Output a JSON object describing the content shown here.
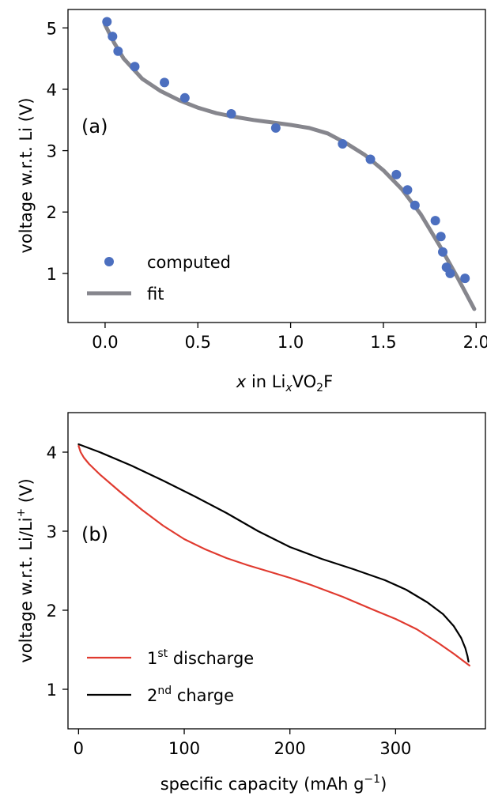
{
  "chart_data": [
    {
      "type": "scatter",
      "panel_label": "(a)",
      "xlabel": {
        "italic": "x",
        "pre": " in Li",
        "sub1": "x",
        "mid": "VO",
        "sub2": "2",
        "post": "F"
      },
      "ylabel": "voltage w.r.t. Li (V)",
      "xlim": [
        -0.2,
        2.05
      ],
      "ylim": [
        0.2,
        5.3
      ],
      "xticks": [
        0.0,
        0.5,
        1.0,
        1.5,
        2.0
      ],
      "xtick_labels": [
        "0.0",
        "0.5",
        "1.0",
        "1.5",
        "2.0"
      ],
      "yticks": [
        1,
        2,
        3,
        4,
        5
      ],
      "ytick_labels": [
        "1",
        "2",
        "3",
        "4",
        "5"
      ],
      "legend_position": "lower-left",
      "series": [
        {
          "name": "computed",
          "kind": "scatter",
          "color": "#4c6fbf",
          "x": [
            0.01,
            0.04,
            0.07,
            0.16,
            0.32,
            0.43,
            0.68,
            0.92,
            1.28,
            1.43,
            1.57,
            1.63,
            1.67,
            1.78,
            1.81,
            1.82,
            1.84,
            1.86,
            1.94
          ],
          "y": [
            5.1,
            4.86,
            4.62,
            4.37,
            4.11,
            3.86,
            3.6,
            3.37,
            3.11,
            2.86,
            2.61,
            2.36,
            2.11,
            1.86,
            1.6,
            1.35,
            1.1,
            1.0,
            0.92
          ]
        },
        {
          "name": "fit",
          "kind": "line",
          "color": "#86868d",
          "x": [
            0.0,
            0.05,
            0.1,
            0.2,
            0.3,
            0.4,
            0.5,
            0.6,
            0.7,
            0.8,
            0.9,
            1.0,
            1.1,
            1.2,
            1.3,
            1.4,
            1.5,
            1.6,
            1.7,
            1.8,
            1.9,
            1.99
          ],
          "y": [
            5.05,
            4.75,
            4.5,
            4.17,
            3.97,
            3.82,
            3.7,
            3.61,
            3.55,
            3.5,
            3.46,
            3.42,
            3.37,
            3.28,
            3.12,
            2.93,
            2.68,
            2.37,
            1.97,
            1.47,
            0.93,
            0.42
          ]
        }
      ]
    },
    {
      "type": "line",
      "panel_label": "(b)",
      "xlabel": {
        "pre": "specific capacity (mAh g",
        "sup": "−1",
        "post": ")"
      },
      "ylabel": {
        "pre": "voltage w.r.t. Li/Li",
        "sup": "+",
        "post": " (V)"
      },
      "xlim": [
        -10,
        385
      ],
      "ylim": [
        0.5,
        4.5
      ],
      "xticks": [
        0,
        100,
        200,
        300
      ],
      "xtick_labels": [
        "0",
        "100",
        "200",
        "300"
      ],
      "yticks": [
        1,
        2,
        3,
        4
      ],
      "ytick_labels": [
        "1",
        "2",
        "3",
        "4"
      ],
      "legend_position": "lower-left",
      "series": [
        {
          "name": {
            "pre": "1",
            "sup": "st",
            "post": " discharge"
          },
          "kind": "line",
          "color": "#e03a2f",
          "x": [
            0,
            2,
            5,
            10,
            20,
            40,
            60,
            80,
            100,
            120,
            140,
            160,
            180,
            200,
            220,
            250,
            280,
            300,
            320,
            340,
            355,
            370
          ],
          "y": [
            4.08,
            4.0,
            3.93,
            3.85,
            3.72,
            3.49,
            3.27,
            3.07,
            2.9,
            2.77,
            2.66,
            2.57,
            2.49,
            2.41,
            2.32,
            2.17,
            2.0,
            1.89,
            1.76,
            1.59,
            1.45,
            1.3
          ]
        },
        {
          "name": {
            "pre": "2",
            "sup": "nd",
            "post": " charge"
          },
          "kind": "line",
          "color": "#000000",
          "x": [
            0,
            20,
            50,
            80,
            110,
            140,
            170,
            200,
            230,
            260,
            290,
            310,
            330,
            345,
            355,
            362,
            366,
            368,
            369
          ],
          "y": [
            4.1,
            4.0,
            3.83,
            3.64,
            3.44,
            3.23,
            3.0,
            2.8,
            2.65,
            2.52,
            2.38,
            2.26,
            2.1,
            1.95,
            1.8,
            1.65,
            1.52,
            1.42,
            1.35
          ]
        }
      ]
    }
  ]
}
